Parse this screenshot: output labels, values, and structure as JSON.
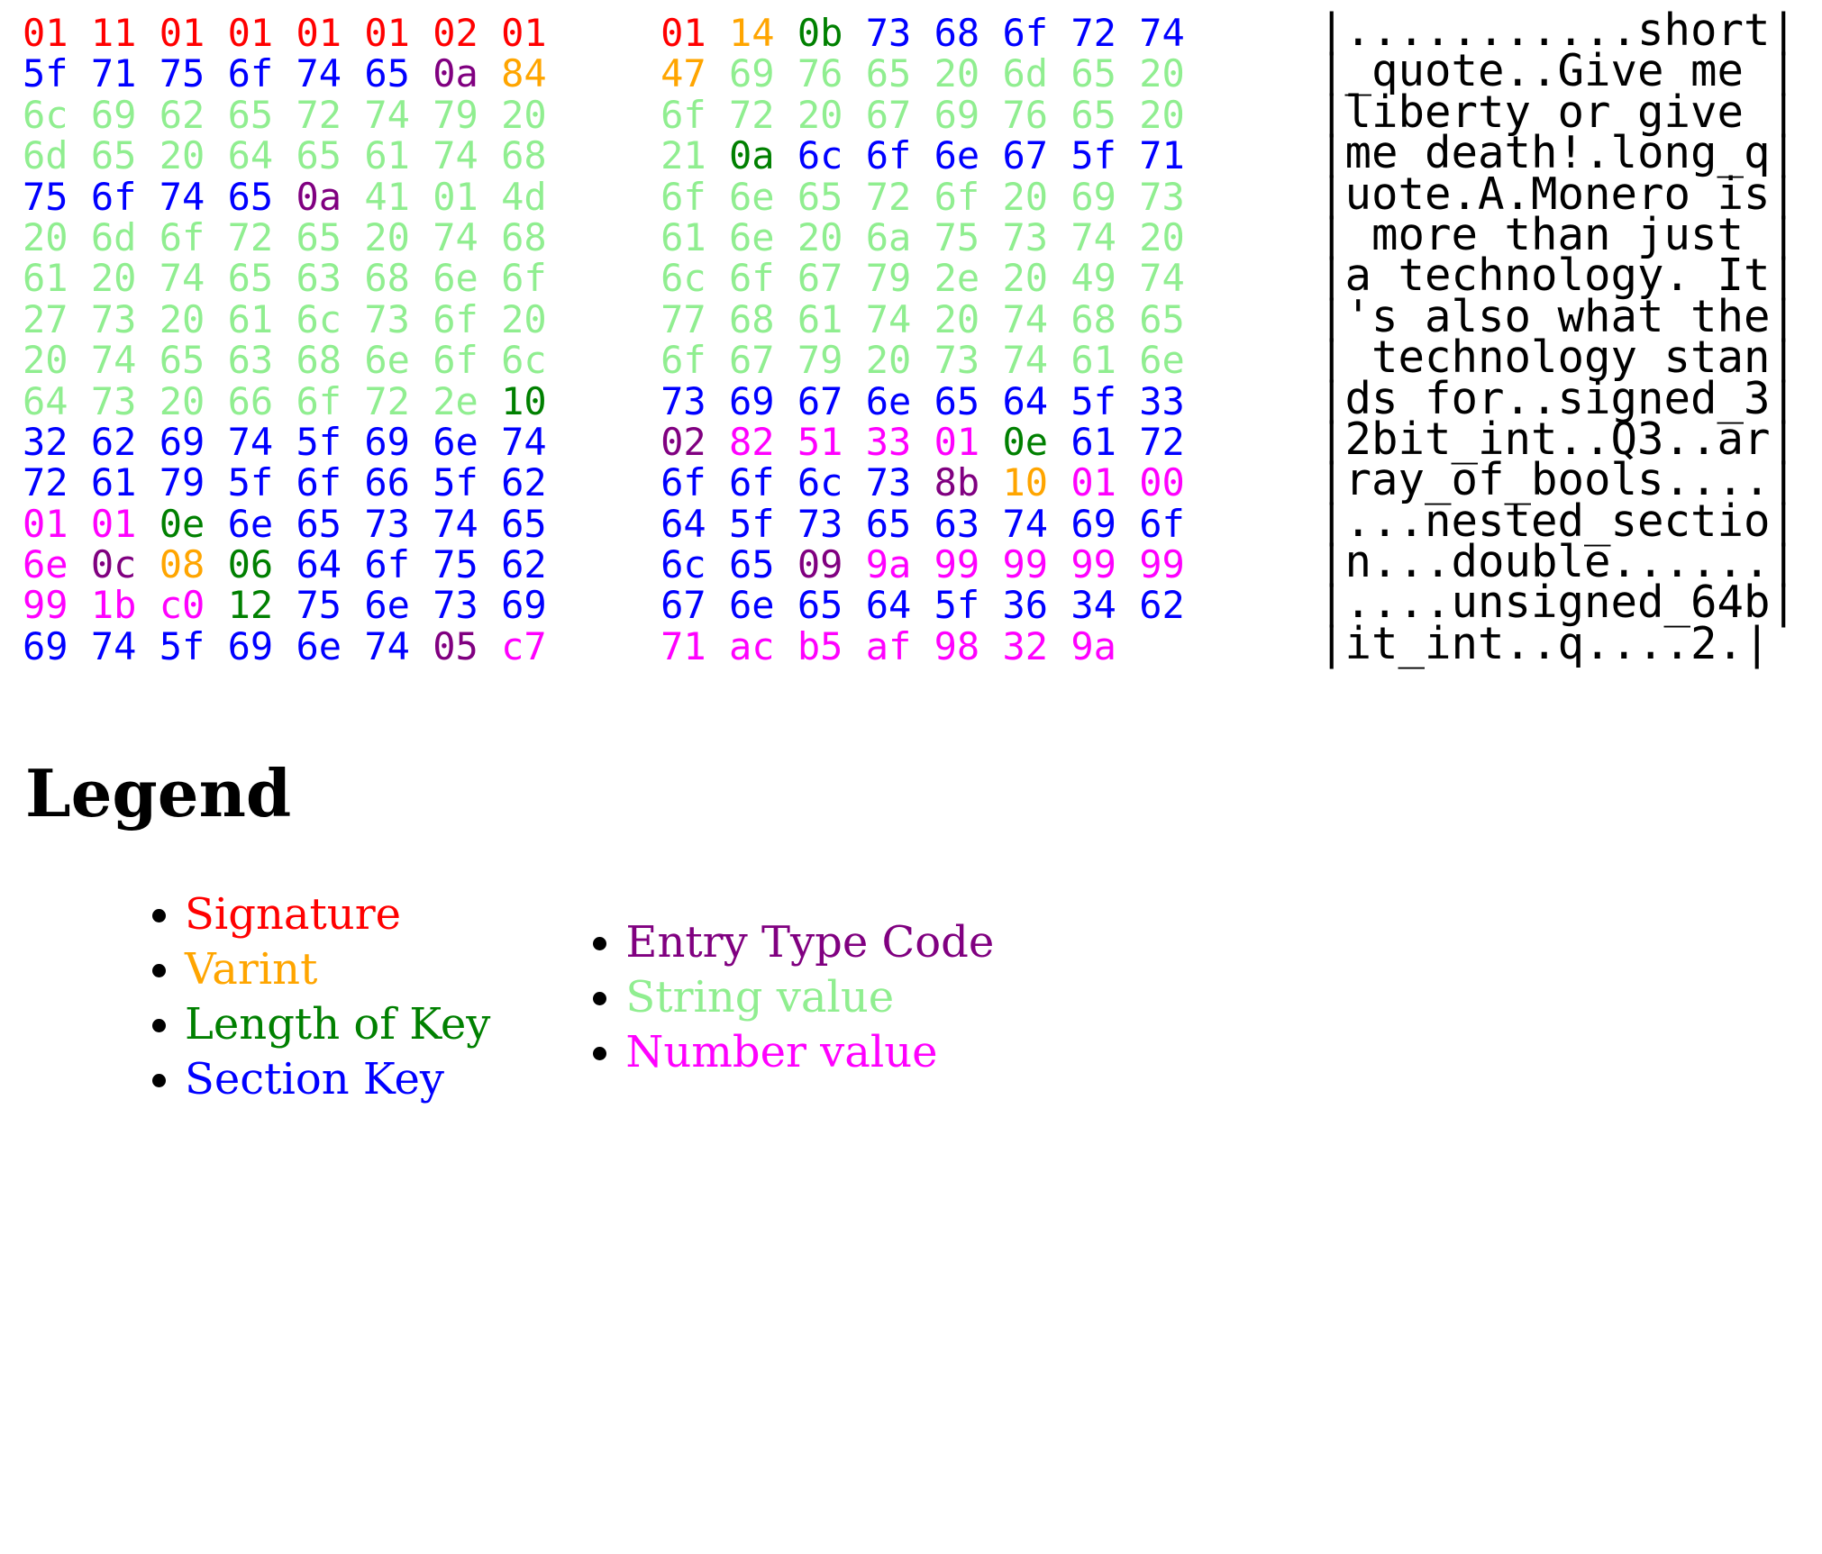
{
  "colors": {
    "sig": "#ff0000",
    "var": "#ffa500",
    "len": "#008000",
    "key": "#0000ff",
    "type": "#800080",
    "str": "#90ee90",
    "num": "#ff00ff"
  },
  "hexdump": {
    "rows": [
      {
        "bytes": [
          [
            "01",
            "sig"
          ],
          [
            "11",
            "sig"
          ],
          [
            "01",
            "sig"
          ],
          [
            "01",
            "sig"
          ],
          [
            "01",
            "sig"
          ],
          [
            "01",
            "sig"
          ],
          [
            "02",
            "sig"
          ],
          [
            "01",
            "sig"
          ],
          [
            "01",
            "sig"
          ],
          [
            "14",
            "var"
          ],
          [
            "0b",
            "len"
          ],
          [
            "73",
            "key"
          ],
          [
            "68",
            "key"
          ],
          [
            "6f",
            "key"
          ],
          [
            "72",
            "key"
          ],
          [
            "74",
            "key"
          ]
        ],
        "ascii": "|...........short|"
      },
      {
        "bytes": [
          [
            "5f",
            "key"
          ],
          [
            "71",
            "key"
          ],
          [
            "75",
            "key"
          ],
          [
            "6f",
            "key"
          ],
          [
            "74",
            "key"
          ],
          [
            "65",
            "key"
          ],
          [
            "0a",
            "type"
          ],
          [
            "84",
            "var"
          ],
          [
            "47",
            "var"
          ],
          [
            "69",
            "str"
          ],
          [
            "76",
            "str"
          ],
          [
            "65",
            "str"
          ],
          [
            "20",
            "str"
          ],
          [
            "6d",
            "str"
          ],
          [
            "65",
            "str"
          ],
          [
            "20",
            "str"
          ]
        ],
        "ascii": "|_quote..Give me |"
      },
      {
        "bytes": [
          [
            "6c",
            "str"
          ],
          [
            "69",
            "str"
          ],
          [
            "62",
            "str"
          ],
          [
            "65",
            "str"
          ],
          [
            "72",
            "str"
          ],
          [
            "74",
            "str"
          ],
          [
            "79",
            "str"
          ],
          [
            "20",
            "str"
          ],
          [
            "6f",
            "str"
          ],
          [
            "72",
            "str"
          ],
          [
            "20",
            "str"
          ],
          [
            "67",
            "str"
          ],
          [
            "69",
            "str"
          ],
          [
            "76",
            "str"
          ],
          [
            "65",
            "str"
          ],
          [
            "20",
            "str"
          ]
        ],
        "ascii": "|liberty or give |"
      },
      {
        "bytes": [
          [
            "6d",
            "str"
          ],
          [
            "65",
            "str"
          ],
          [
            "20",
            "str"
          ],
          [
            "64",
            "str"
          ],
          [
            "65",
            "str"
          ],
          [
            "61",
            "str"
          ],
          [
            "74",
            "str"
          ],
          [
            "68",
            "str"
          ],
          [
            "21",
            "str"
          ],
          [
            "0a",
            "len"
          ],
          [
            "6c",
            "key"
          ],
          [
            "6f",
            "key"
          ],
          [
            "6e",
            "key"
          ],
          [
            "67",
            "key"
          ],
          [
            "5f",
            "key"
          ],
          [
            "71",
            "key"
          ]
        ],
        "ascii": "|me death!.long_q|"
      },
      {
        "bytes": [
          [
            "75",
            "key"
          ],
          [
            "6f",
            "key"
          ],
          [
            "74",
            "key"
          ],
          [
            "65",
            "key"
          ],
          [
            "0a",
            "type"
          ],
          [
            "41",
            "str"
          ],
          [
            "01",
            "str"
          ],
          [
            "4d",
            "str"
          ],
          [
            "6f",
            "str"
          ],
          [
            "6e",
            "str"
          ],
          [
            "65",
            "str"
          ],
          [
            "72",
            "str"
          ],
          [
            "6f",
            "str"
          ],
          [
            "20",
            "str"
          ],
          [
            "69",
            "str"
          ],
          [
            "73",
            "str"
          ]
        ],
        "ascii": "|uote.A.Monero is|"
      },
      {
        "bytes": [
          [
            "20",
            "str"
          ],
          [
            "6d",
            "str"
          ],
          [
            "6f",
            "str"
          ],
          [
            "72",
            "str"
          ],
          [
            "65",
            "str"
          ],
          [
            "20",
            "str"
          ],
          [
            "74",
            "str"
          ],
          [
            "68",
            "str"
          ],
          [
            "61",
            "str"
          ],
          [
            "6e",
            "str"
          ],
          [
            "20",
            "str"
          ],
          [
            "6a",
            "str"
          ],
          [
            "75",
            "str"
          ],
          [
            "73",
            "str"
          ],
          [
            "74",
            "str"
          ],
          [
            "20",
            "str"
          ]
        ],
        "ascii": "| more than just |"
      },
      {
        "bytes": [
          [
            "61",
            "str"
          ],
          [
            "20",
            "str"
          ],
          [
            "74",
            "str"
          ],
          [
            "65",
            "str"
          ],
          [
            "63",
            "str"
          ],
          [
            "68",
            "str"
          ],
          [
            "6e",
            "str"
          ],
          [
            "6f",
            "str"
          ],
          [
            "6c",
            "str"
          ],
          [
            "6f",
            "str"
          ],
          [
            "67",
            "str"
          ],
          [
            "79",
            "str"
          ],
          [
            "2e",
            "str"
          ],
          [
            "20",
            "str"
          ],
          [
            "49",
            "str"
          ],
          [
            "74",
            "str"
          ]
        ],
        "ascii": "|a technology. It|"
      },
      {
        "bytes": [
          [
            "27",
            "str"
          ],
          [
            "73",
            "str"
          ],
          [
            "20",
            "str"
          ],
          [
            "61",
            "str"
          ],
          [
            "6c",
            "str"
          ],
          [
            "73",
            "str"
          ],
          [
            "6f",
            "str"
          ],
          [
            "20",
            "str"
          ],
          [
            "77",
            "str"
          ],
          [
            "68",
            "str"
          ],
          [
            "61",
            "str"
          ],
          [
            "74",
            "str"
          ],
          [
            "20",
            "str"
          ],
          [
            "74",
            "str"
          ],
          [
            "68",
            "str"
          ],
          [
            "65",
            "str"
          ]
        ],
        "ascii": "|'s also what the|"
      },
      {
        "bytes": [
          [
            "20",
            "str"
          ],
          [
            "74",
            "str"
          ],
          [
            "65",
            "str"
          ],
          [
            "63",
            "str"
          ],
          [
            "68",
            "str"
          ],
          [
            "6e",
            "str"
          ],
          [
            "6f",
            "str"
          ],
          [
            "6c",
            "str"
          ],
          [
            "6f",
            "str"
          ],
          [
            "67",
            "str"
          ],
          [
            "79",
            "str"
          ],
          [
            "20",
            "str"
          ],
          [
            "73",
            "str"
          ],
          [
            "74",
            "str"
          ],
          [
            "61",
            "str"
          ],
          [
            "6e",
            "str"
          ]
        ],
        "ascii": "| technology stan|"
      },
      {
        "bytes": [
          [
            "64",
            "str"
          ],
          [
            "73",
            "str"
          ],
          [
            "20",
            "str"
          ],
          [
            "66",
            "str"
          ],
          [
            "6f",
            "str"
          ],
          [
            "72",
            "str"
          ],
          [
            "2e",
            "str"
          ],
          [
            "10",
            "len"
          ],
          [
            "73",
            "key"
          ],
          [
            "69",
            "key"
          ],
          [
            "67",
            "key"
          ],
          [
            "6e",
            "key"
          ],
          [
            "65",
            "key"
          ],
          [
            "64",
            "key"
          ],
          [
            "5f",
            "key"
          ],
          [
            "33",
            "key"
          ]
        ],
        "ascii": "|ds for..signed_3|"
      },
      {
        "bytes": [
          [
            "32",
            "key"
          ],
          [
            "62",
            "key"
          ],
          [
            "69",
            "key"
          ],
          [
            "74",
            "key"
          ],
          [
            "5f",
            "key"
          ],
          [
            "69",
            "key"
          ],
          [
            "6e",
            "key"
          ],
          [
            "74",
            "key"
          ],
          [
            "02",
            "type"
          ],
          [
            "82",
            "num"
          ],
          [
            "51",
            "num"
          ],
          [
            "33",
            "num"
          ],
          [
            "01",
            "num"
          ],
          [
            "0e",
            "len"
          ],
          [
            "61",
            "key"
          ],
          [
            "72",
            "key"
          ]
        ],
        "ascii": "|2bit_int..Q3..ar|"
      },
      {
        "bytes": [
          [
            "72",
            "key"
          ],
          [
            "61",
            "key"
          ],
          [
            "79",
            "key"
          ],
          [
            "5f",
            "key"
          ],
          [
            "6f",
            "key"
          ],
          [
            "66",
            "key"
          ],
          [
            "5f",
            "key"
          ],
          [
            "62",
            "key"
          ],
          [
            "6f",
            "key"
          ],
          [
            "6f",
            "key"
          ],
          [
            "6c",
            "key"
          ],
          [
            "73",
            "key"
          ],
          [
            "8b",
            "type"
          ],
          [
            "10",
            "var"
          ],
          [
            "01",
            "num"
          ],
          [
            "00",
            "num"
          ]
        ],
        "ascii": "|ray_of_bools....|"
      },
      {
        "bytes": [
          [
            "01",
            "num"
          ],
          [
            "01",
            "num"
          ],
          [
            "0e",
            "len"
          ],
          [
            "6e",
            "key"
          ],
          [
            "65",
            "key"
          ],
          [
            "73",
            "key"
          ],
          [
            "74",
            "key"
          ],
          [
            "65",
            "key"
          ],
          [
            "64",
            "key"
          ],
          [
            "5f",
            "key"
          ],
          [
            "73",
            "key"
          ],
          [
            "65",
            "key"
          ],
          [
            "63",
            "key"
          ],
          [
            "74",
            "key"
          ],
          [
            "69",
            "key"
          ],
          [
            "6f",
            "key"
          ]
        ],
        "ascii": "|...nested_sectio|"
      },
      {
        "bytes": [
          [
            "6e",
            "num"
          ],
          [
            "0c",
            "type"
          ],
          [
            "08",
            "var"
          ],
          [
            "06",
            "len"
          ],
          [
            "64",
            "key"
          ],
          [
            "6f",
            "key"
          ],
          [
            "75",
            "key"
          ],
          [
            "62",
            "key"
          ],
          [
            "6c",
            "key"
          ],
          [
            "65",
            "key"
          ],
          [
            "09",
            "type"
          ],
          [
            "9a",
            "num"
          ],
          [
            "99",
            "num"
          ],
          [
            "99",
            "num"
          ],
          [
            "99",
            "num"
          ],
          [
            "99",
            "num"
          ]
        ],
        "ascii": "|n...double......|"
      },
      {
        "bytes": [
          [
            "99",
            "num"
          ],
          [
            "1b",
            "num"
          ],
          [
            "c0",
            "num"
          ],
          [
            "12",
            "len"
          ],
          [
            "75",
            "key"
          ],
          [
            "6e",
            "key"
          ],
          [
            "73",
            "key"
          ],
          [
            "69",
            "key"
          ],
          [
            "67",
            "key"
          ],
          [
            "6e",
            "key"
          ],
          [
            "65",
            "key"
          ],
          [
            "64",
            "key"
          ],
          [
            "5f",
            "key"
          ],
          [
            "36",
            "key"
          ],
          [
            "34",
            "key"
          ],
          [
            "62",
            "key"
          ]
        ],
        "ascii": "|....unsigned_64b|"
      },
      {
        "bytes": [
          [
            "69",
            "key"
          ],
          [
            "74",
            "key"
          ],
          [
            "5f",
            "key"
          ],
          [
            "69",
            "key"
          ],
          [
            "6e",
            "key"
          ],
          [
            "74",
            "key"
          ],
          [
            "05",
            "type"
          ],
          [
            "c7",
            "num"
          ],
          [
            "71",
            "num"
          ],
          [
            "ac",
            "num"
          ],
          [
            "b5",
            "num"
          ],
          [
            "af",
            "num"
          ],
          [
            "98",
            "num"
          ],
          [
            "32",
            "num"
          ],
          [
            "9a",
            "num"
          ]
        ],
        "ascii": "|it_int..q....2.|"
      }
    ]
  },
  "legend": {
    "title": "Legend",
    "left_items": [
      {
        "label": "Signature",
        "color_key": "sig"
      },
      {
        "label": "Varint",
        "color_key": "var"
      },
      {
        "label": "Length of Key",
        "color_key": "len"
      },
      {
        "label": "Section Key",
        "color_key": "key"
      }
    ],
    "right_items": [
      {
        "label": "Entry Type Code",
        "color_key": "type"
      },
      {
        "label": "String value",
        "color_key": "str"
      },
      {
        "label": "Number value",
        "color_key": "num"
      }
    ]
  }
}
